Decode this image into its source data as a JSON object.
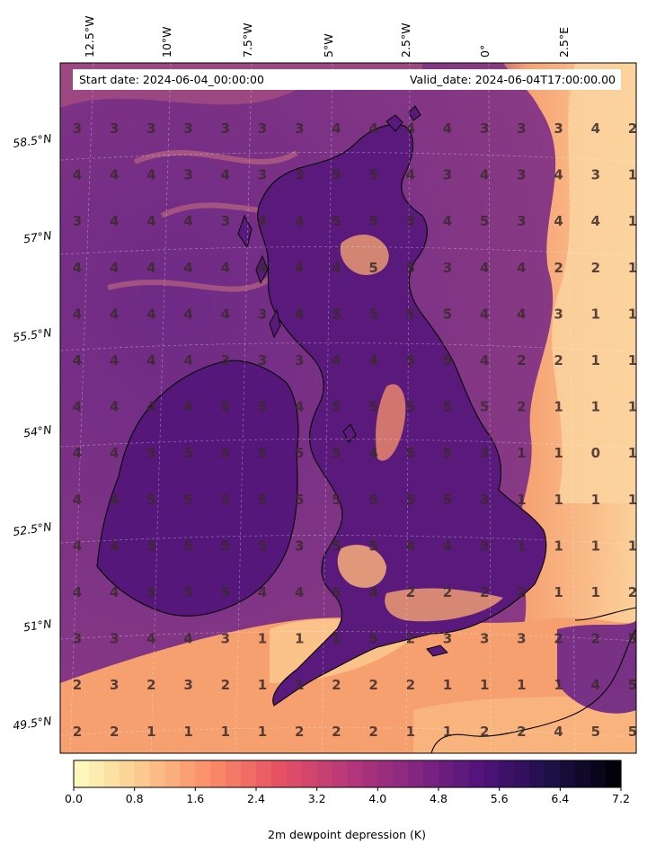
{
  "header": {
    "start_date": "Start date: 2024-06-04_00:00:00",
    "valid_date": "Valid_date: 2024-06-04T17:00:00.00"
  },
  "map": {
    "lon_labels": [
      "12.5°W",
      "10°W",
      "7.5°W",
      "5°W",
      "2.5°W",
      "0°",
      "2.5°E"
    ],
    "lat_labels": [
      "58.5°N",
      "57°N",
      "55.5°N",
      "54°N",
      "52.5°N",
      "51°N",
      "49.5°N"
    ],
    "grid_values": [
      [
        "3",
        "3",
        "3",
        "3",
        "3",
        "3",
        "3",
        "4",
        "4",
        "4",
        "4",
        "3",
        "3",
        "3",
        "4",
        "2"
      ],
      [
        "4",
        "4",
        "4",
        "3",
        "4",
        "3",
        "3",
        "5",
        "5",
        "4",
        "3",
        "4",
        "3",
        "4",
        "3",
        "1"
      ],
      [
        "3",
        "4",
        "4",
        "4",
        "3",
        "4",
        "4",
        "5",
        "5",
        "3",
        "4",
        "5",
        "3",
        "4",
        "4",
        "1"
      ],
      [
        "4",
        "4",
        "4",
        "4",
        "4",
        "4",
        "4",
        "4",
        "5",
        "5",
        "3",
        "4",
        "4",
        "2",
        "2",
        "1"
      ],
      [
        "4",
        "4",
        "4",
        "4",
        "4",
        "3",
        "4",
        "5",
        "5",
        "5",
        "5",
        "4",
        "4",
        "3",
        "1",
        "1"
      ],
      [
        "4",
        "4",
        "4",
        "4",
        "3",
        "3",
        "3",
        "4",
        "4",
        "5",
        "5",
        "4",
        "2",
        "2",
        "1",
        "1"
      ],
      [
        "4",
        "4",
        "4",
        "4",
        "5",
        "5",
        "4",
        "5",
        "5",
        "5",
        "5",
        "5",
        "2",
        "1",
        "1",
        "1"
      ],
      [
        "4",
        "4",
        "5",
        "5",
        "5",
        "5",
        "5",
        "5",
        "4",
        "5",
        "5",
        "3",
        "1",
        "1",
        "0",
        "1"
      ],
      [
        "4",
        "4",
        "5",
        "5",
        "5",
        "5",
        "5",
        "5",
        "5",
        "5",
        "5",
        "3",
        "1",
        "1",
        "1",
        "1"
      ],
      [
        "4",
        "4",
        "5",
        "5",
        "5",
        "5",
        "3",
        "5",
        "5",
        "4",
        "4",
        "3",
        "1",
        "1",
        "1",
        "1"
      ],
      [
        "4",
        "4",
        "5",
        "5",
        "5",
        "4",
        "4",
        "5",
        "4",
        "2",
        "2",
        "2",
        "2",
        "1",
        "1",
        "2"
      ],
      [
        "3",
        "3",
        "4",
        "4",
        "3",
        "1",
        "1",
        "1",
        "5",
        "2",
        "3",
        "3",
        "3",
        "2",
        "2",
        "5"
      ],
      [
        "2",
        "3",
        "2",
        "3",
        "2",
        "1",
        "1",
        "2",
        "2",
        "2",
        "1",
        "1",
        "1",
        "1",
        "4",
        "5"
      ],
      [
        "2",
        "2",
        "1",
        "1",
        "1",
        "1",
        "2",
        "2",
        "2",
        "1",
        "1",
        "2",
        "2",
        "4",
        "5",
        "5"
      ]
    ]
  },
  "colorbar": {
    "ticks": [
      "0.0",
      "0.8",
      "1.6",
      "2.4",
      "3.2",
      "4.0",
      "4.8",
      "5.6",
      "6.4",
      "7.2"
    ],
    "min": 0.0,
    "max": 7.2,
    "levels": 36,
    "label": "2m dewpoint depression (K)",
    "colormap": "magma_r",
    "stops": [
      "#fcfdbf",
      "#fcc98e",
      "#fb8c68",
      "#e75263",
      "#b73779",
      "#822681",
      "#4f127b",
      "#1c1046",
      "#000004"
    ]
  }
}
